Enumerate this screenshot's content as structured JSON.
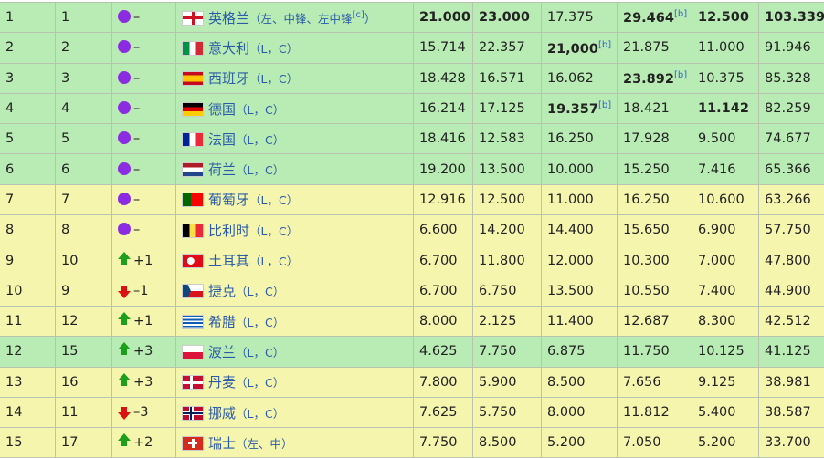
{
  "colors": {
    "green_row": "#b9ebb4",
    "yellow_row": "#f6f5ae",
    "steady": "#8b2be2",
    "up": "#1ca01c",
    "down": "#dd1111"
  },
  "rows": [
    {
      "rank": "1",
      "prev": "1",
      "move": "steady",
      "change": "–",
      "flag": "england",
      "name": "英格兰",
      "pos": "（左、中锋、左中锋",
      "note": "[c]",
      "pos_end": "）",
      "v": [
        "21.000",
        "23.000",
        "17.375",
        "29.464",
        "12.500",
        "103.339"
      ],
      "bold": [
        0,
        1,
        3,
        4,
        5
      ],
      "sup": {
        "3": "[b]"
      },
      "bg": "g"
    },
    {
      "rank": "2",
      "prev": "2",
      "move": "steady",
      "change": "–",
      "flag": "italy",
      "name": "意大利",
      "pos": "（L，C）",
      "v": [
        "15.714",
        "22.357",
        "21,000",
        "21.875",
        "11.000",
        "91.946"
      ],
      "bold": [
        2
      ],
      "sup": {
        "2": "[b]"
      },
      "bg": "g"
    },
    {
      "rank": "3",
      "prev": "3",
      "move": "steady",
      "change": "–",
      "flag": "spain",
      "name": "西班牙",
      "pos": "（L，C）",
      "v": [
        "18.428",
        "16.571",
        "16.062",
        "23.892",
        "10.375",
        "85.328"
      ],
      "bold": [
        3
      ],
      "sup": {
        "3": "[b]"
      },
      "bg": "g"
    },
    {
      "rank": "4",
      "prev": "4",
      "move": "steady",
      "change": "–",
      "flag": "germany",
      "name": "德国",
      "pos": "（L，C）",
      "v": [
        "16.214",
        "17.125",
        "19.357",
        "18.421",
        "11.142",
        "82.259"
      ],
      "bold": [
        2,
        4
      ],
      "sup": {
        "2": "[b]"
      },
      "bg": "g"
    },
    {
      "rank": "5",
      "prev": "5",
      "move": "steady",
      "change": "–",
      "flag": "france",
      "name": "法国",
      "pos": "（L，C）",
      "v": [
        "18.416",
        "12.583",
        "16.250",
        "17.928",
        "9.500",
        "74.677"
      ],
      "bg": "g"
    },
    {
      "rank": "6",
      "prev": "6",
      "move": "steady",
      "change": "–",
      "flag": "netherlands",
      "name": "荷兰",
      "pos": "（L，C）",
      "v": [
        "19.200",
        "13.500",
        "10.000",
        "15.250",
        "7.416",
        "65.366"
      ],
      "bg": "g"
    },
    {
      "rank": "7",
      "prev": "7",
      "move": "steady",
      "change": "–",
      "flag": "portugal",
      "name": "葡萄牙",
      "pos": "（L，C）",
      "v": [
        "12.916",
        "12.500",
        "11.000",
        "16.250",
        "10.600",
        "63.266"
      ],
      "bg": "y"
    },
    {
      "rank": "8",
      "prev": "8",
      "move": "steady",
      "change": "–",
      "flag": "belgium",
      "name": "比利时",
      "pos": "（L，C）",
      "v": [
        "6.600",
        "14.200",
        "14.400",
        "15.650",
        "6.900",
        "57.750"
      ],
      "bg": "y"
    },
    {
      "rank": "9",
      "prev": "10",
      "move": "up",
      "change": "+1",
      "flag": "turkey",
      "name": "土耳其",
      "pos": "（L，C）",
      "v": [
        "6.700",
        "11.800",
        "12.000",
        "10.300",
        "7.000",
        "47.800"
      ],
      "bg": "y"
    },
    {
      "rank": "10",
      "prev": "9",
      "move": "down",
      "change": "–1",
      "flag": "czech",
      "name": "捷克",
      "pos": "（L，C）",
      "v": [
        "6.700",
        "6.750",
        "13.500",
        "10.550",
        "7.400",
        "44.900"
      ],
      "bg": "y"
    },
    {
      "rank": "11",
      "prev": "12",
      "move": "up",
      "change": "+1",
      "flag": "greece",
      "name": "希腊",
      "pos": "（L，C）",
      "v": [
        "8.000",
        "2.125",
        "11.400",
        "12.687",
        "8.300",
        "42.512"
      ],
      "bg": "y"
    },
    {
      "rank": "12",
      "prev": "15",
      "move": "up",
      "change": "+3",
      "flag": "poland",
      "name": "波兰",
      "pos": "（L，C）",
      "v": [
        "4.625",
        "7.750",
        "6.875",
        "11.750",
        "10.125",
        "41.125"
      ],
      "bg": "g"
    },
    {
      "rank": "13",
      "prev": "16",
      "move": "up",
      "change": "+3",
      "flag": "denmark",
      "name": "丹麦",
      "pos": "（L，C）",
      "v": [
        "7.800",
        "5.900",
        "8.500",
        "7.656",
        "9.125",
        "38.981"
      ],
      "bg": "y"
    },
    {
      "rank": "14",
      "prev": "11",
      "move": "down",
      "change": "–3",
      "flag": "norway",
      "name": "挪威",
      "pos": "（L，C）",
      "v": [
        "7.625",
        "5.750",
        "8.000",
        "11.812",
        "5.400",
        "38.587"
      ],
      "bg": "y"
    },
    {
      "rank": "15",
      "prev": "17",
      "move": "up",
      "change": "+2",
      "flag": "switzerland",
      "name": "瑞士",
      "pos": "（左、中）",
      "v": [
        "7.750",
        "8.500",
        "5.200",
        "7.050",
        "5.200",
        "33.700"
      ],
      "bg": "y"
    }
  ]
}
